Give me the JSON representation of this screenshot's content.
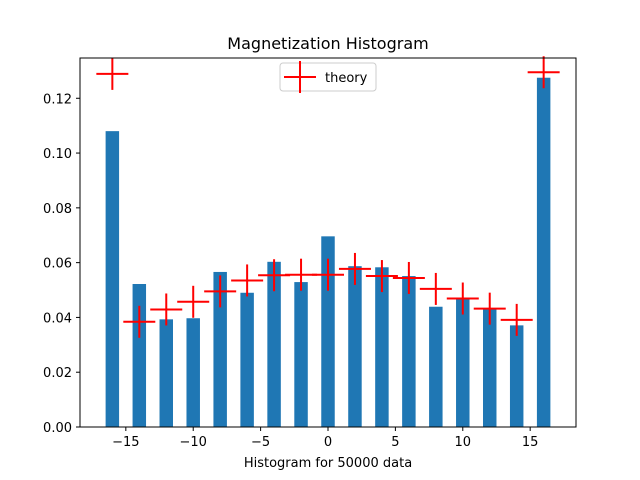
{
  "chart_data": {
    "type": "bar",
    "title": "Magnetization Histogram",
    "xlabel": "Histogram for 50000 data",
    "ylabel": "",
    "xlim": [
      -18.4,
      18.4
    ],
    "ylim": [
      0,
      0.1347
    ],
    "xticks": [
      -15,
      -10,
      -5,
      0,
      5,
      10,
      15
    ],
    "xtick_labels": [
      "−15",
      "−10",
      "−5",
      "0",
      "5",
      "10",
      "15"
    ],
    "yticks": [
      0.0,
      0.02,
      0.04,
      0.06,
      0.08,
      0.1,
      0.12
    ],
    "ytick_labels": [
      "0.00",
      "0.02",
      "0.04",
      "0.06",
      "0.08",
      "0.10",
      "0.12"
    ],
    "bar_width": 1.0,
    "legend_position": "upper center",
    "series": [
      {
        "type": "bar",
        "color": "#1f77b4",
        "x": [
          -16,
          -14,
          -12,
          -10,
          -8,
          -6,
          -4,
          -2,
          0,
          2,
          4,
          6,
          8,
          10,
          12,
          14,
          16
        ],
        "values": [
          0.108,
          0.0522,
          0.0393,
          0.0397,
          0.0566,
          0.049,
          0.0603,
          0.0529,
          0.0696,
          0.0587,
          0.0583,
          0.0551,
          0.0439,
          0.047,
          0.0432,
          0.0371,
          0.1275
        ]
      },
      {
        "type": "marker",
        "name": "theory",
        "marker": "+",
        "color": "#ff0000",
        "x": [
          -16,
          -14,
          -12,
          -10,
          -8,
          -6,
          -4,
          -2,
          0,
          2,
          4,
          6,
          8,
          10,
          12,
          14,
          16
        ],
        "values": [
          0.1289,
          0.0384,
          0.0429,
          0.0457,
          0.0495,
          0.0535,
          0.0554,
          0.0556,
          0.0556,
          0.0577,
          0.0551,
          0.0544,
          0.0504,
          0.0469,
          0.0432,
          0.0391,
          0.1295
        ]
      }
    ]
  }
}
